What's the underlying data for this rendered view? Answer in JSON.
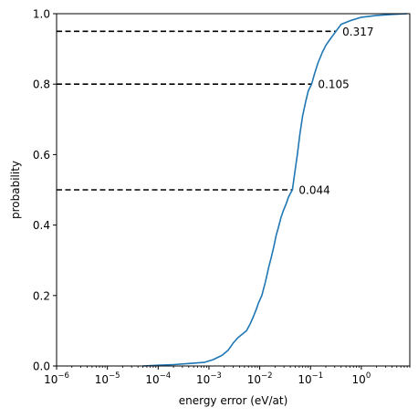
{
  "chart_data": {
    "type": "line",
    "title": "",
    "xlabel": "energy error (eV/at)",
    "ylabel": "probability",
    "xscale": "log",
    "xlim": [
      1e-06,
      9
    ],
    "ylim": [
      0,
      1.0
    ],
    "grid": false,
    "color": "#1f77b4",
    "x_ticks": [
      {
        "value": 1e-06,
        "base": "10",
        "exp": "−6"
      },
      {
        "value": 1e-05,
        "base": "10",
        "exp": "−5"
      },
      {
        "value": 0.0001,
        "base": "10",
        "exp": "−4"
      },
      {
        "value": 0.001,
        "base": "10",
        "exp": "−3"
      },
      {
        "value": 0.01,
        "base": "10",
        "exp": "−2"
      },
      {
        "value": 0.1,
        "base": "10",
        "exp": "−1"
      },
      {
        "value": 1,
        "base": "10",
        "exp": "0"
      }
    ],
    "y_ticks": [
      {
        "value": 0.0,
        "label": "0.0"
      },
      {
        "value": 0.2,
        "label": "0.2"
      },
      {
        "value": 0.4,
        "label": "0.4"
      },
      {
        "value": 0.6,
        "label": "0.6"
      },
      {
        "value": 0.8,
        "label": "0.8"
      },
      {
        "value": 1.0,
        "label": "1.0"
      }
    ],
    "series": [
      {
        "x": [
          5e-05,
          0.0001,
          0.0002,
          0.0004,
          0.0008,
          0.0012,
          0.0018,
          0.0024,
          0.003,
          0.0037,
          0.0045,
          0.0055,
          0.0065,
          0.0075,
          0.0085,
          0.0095,
          0.011,
          0.013,
          0.015,
          0.017,
          0.019,
          0.021,
          0.023,
          0.026,
          0.029,
          0.033,
          0.037,
          0.042,
          0.044,
          0.048,
          0.055,
          0.062,
          0.07,
          0.08,
          0.09,
          0.105,
          0.12,
          0.14,
          0.17,
          0.2,
          0.25,
          0.317,
          0.4,
          0.6,
          1.0,
          2.0,
          4.0,
          8.0
        ],
        "y": [
          0.0,
          0.002,
          0.004,
          0.007,
          0.01,
          0.018,
          0.03,
          0.045,
          0.065,
          0.08,
          0.09,
          0.1,
          0.12,
          0.14,
          0.16,
          0.18,
          0.2,
          0.24,
          0.28,
          0.31,
          0.34,
          0.37,
          0.39,
          0.42,
          0.44,
          0.46,
          0.48,
          0.495,
          0.5,
          0.54,
          0.6,
          0.66,
          0.71,
          0.75,
          0.78,
          0.8,
          0.83,
          0.86,
          0.89,
          0.91,
          0.93,
          0.95,
          0.97,
          0.98,
          0.99,
          0.995,
          0.998,
          1.0
        ]
      }
    ],
    "reference_lines": [
      {
        "y": 0.5,
        "x": 0.044,
        "label": "0.044"
      },
      {
        "y": 0.8,
        "x": 0.105,
        "label": "0.105"
      },
      {
        "y": 0.95,
        "x": 0.317,
        "label": "0.317"
      }
    ]
  }
}
